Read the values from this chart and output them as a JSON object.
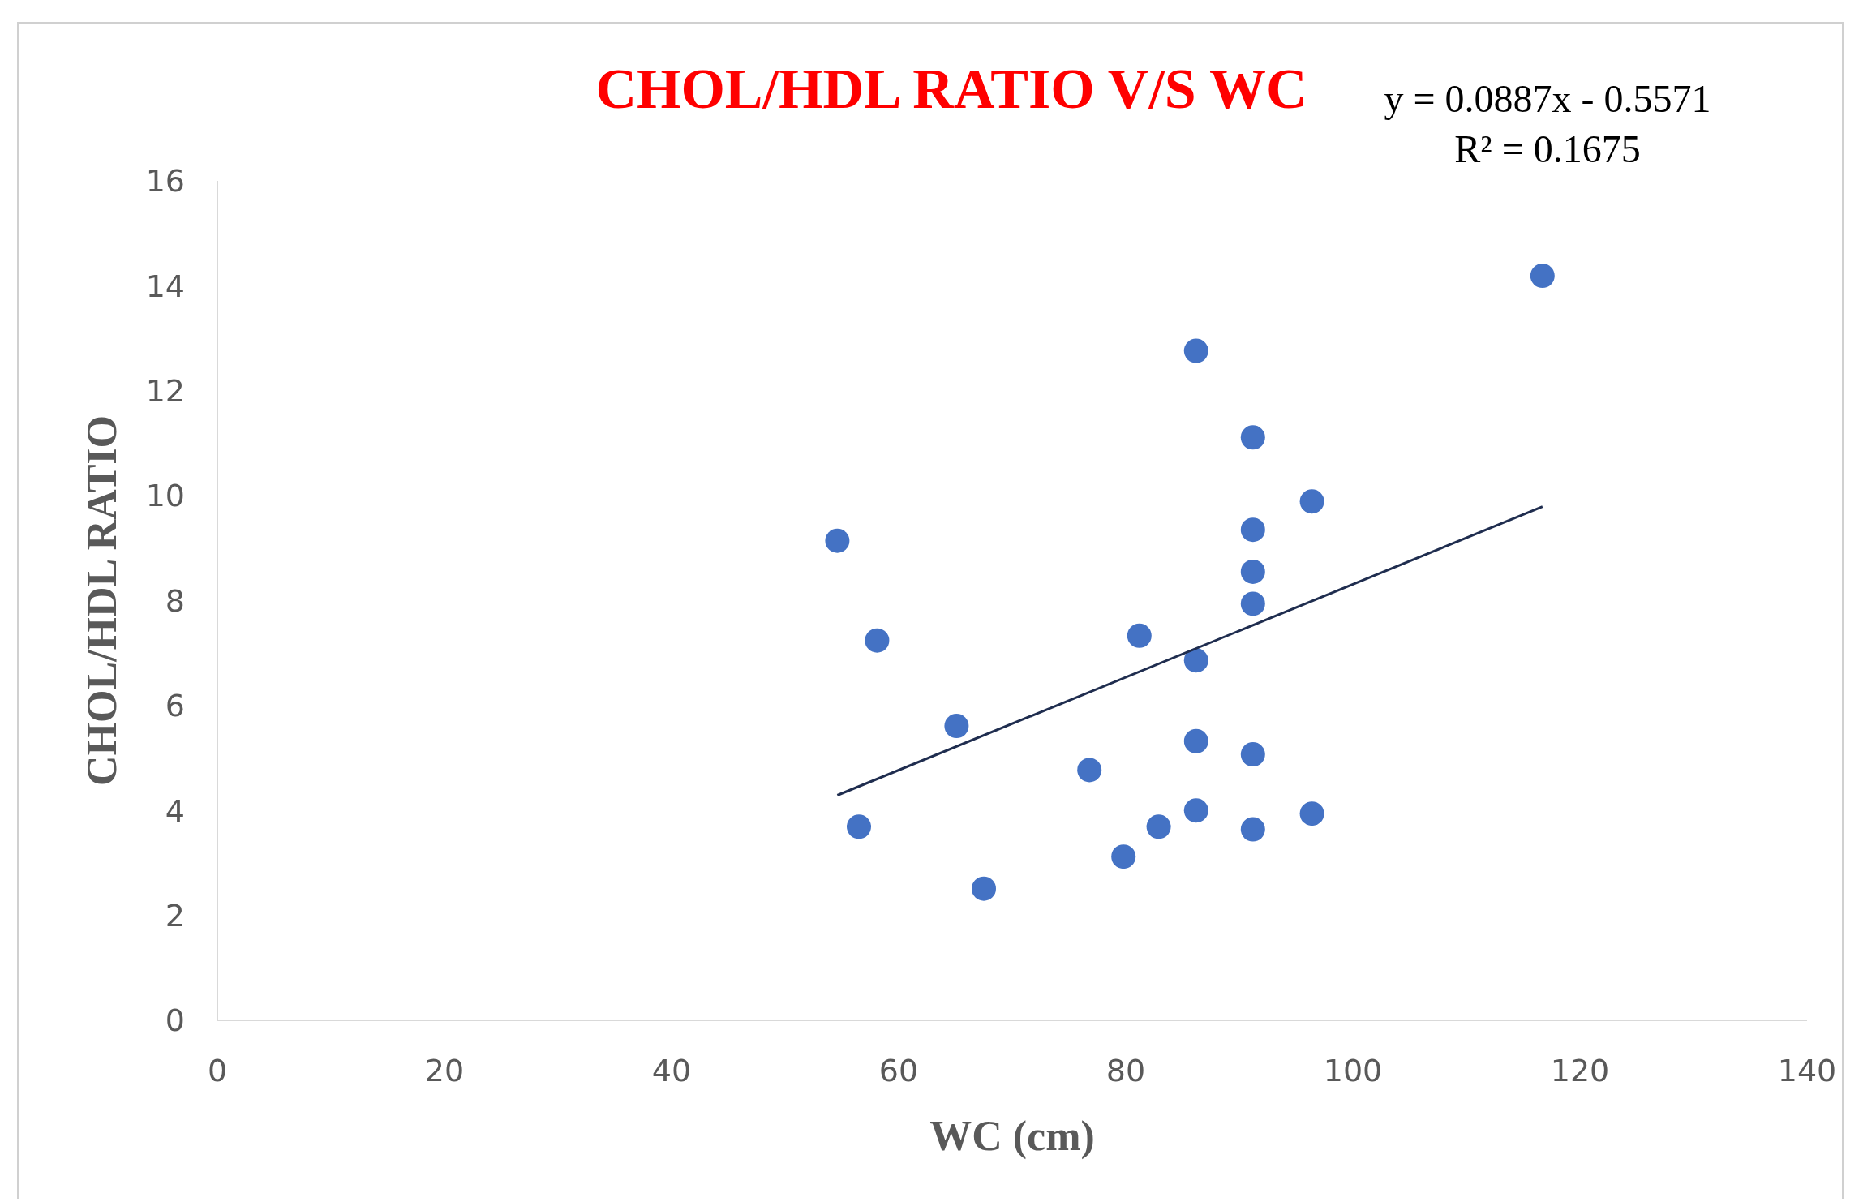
{
  "chart_data": {
    "type": "scatter",
    "title": "CHOL/HDL RATIO V/S WC",
    "xlabel": "WC (cm)",
    "ylabel": "CHOL/HDL RATIO",
    "annotations": [
      "y = 0.0887x - 0.5571",
      "R² = 0.1675"
    ],
    "xlim": [
      0,
      140
    ],
    "xticks": [
      0,
      20,
      40,
      60,
      80,
      100,
      120,
      140
    ],
    "ylim": [
      0,
      16
    ],
    "yticks": [
      0,
      2,
      4,
      6,
      8,
      10,
      12,
      14,
      16
    ],
    "grid": false,
    "series": [
      {
        "marker": "circle",
        "color": "#4472c4",
        "x": [
          54.6,
          58.1,
          56.5,
          65.1,
          67.5,
          76.8,
          79.8,
          81.2,
          82.9,
          86.2,
          86.2,
          86.2,
          86.2,
          91.2,
          91.2,
          91.2,
          91.2,
          91.2,
          91.2,
          96.4,
          96.4,
          116.7
        ],
        "values": [
          9.14,
          7.24,
          3.69,
          5.61,
          2.51,
          4.77,
          3.12,
          7.33,
          3.69,
          12.76,
          6.86,
          5.32,
          4.0,
          11.11,
          9.35,
          8.55,
          7.94,
          5.07,
          3.64,
          9.89,
          3.94,
          14.19
        ]
      },
      {
        "type": "line",
        "color": "#1f2d4f",
        "x": [
          54.6,
          116.7
        ],
        "values": [
          4.29,
          9.79
        ]
      }
    ]
  }
}
